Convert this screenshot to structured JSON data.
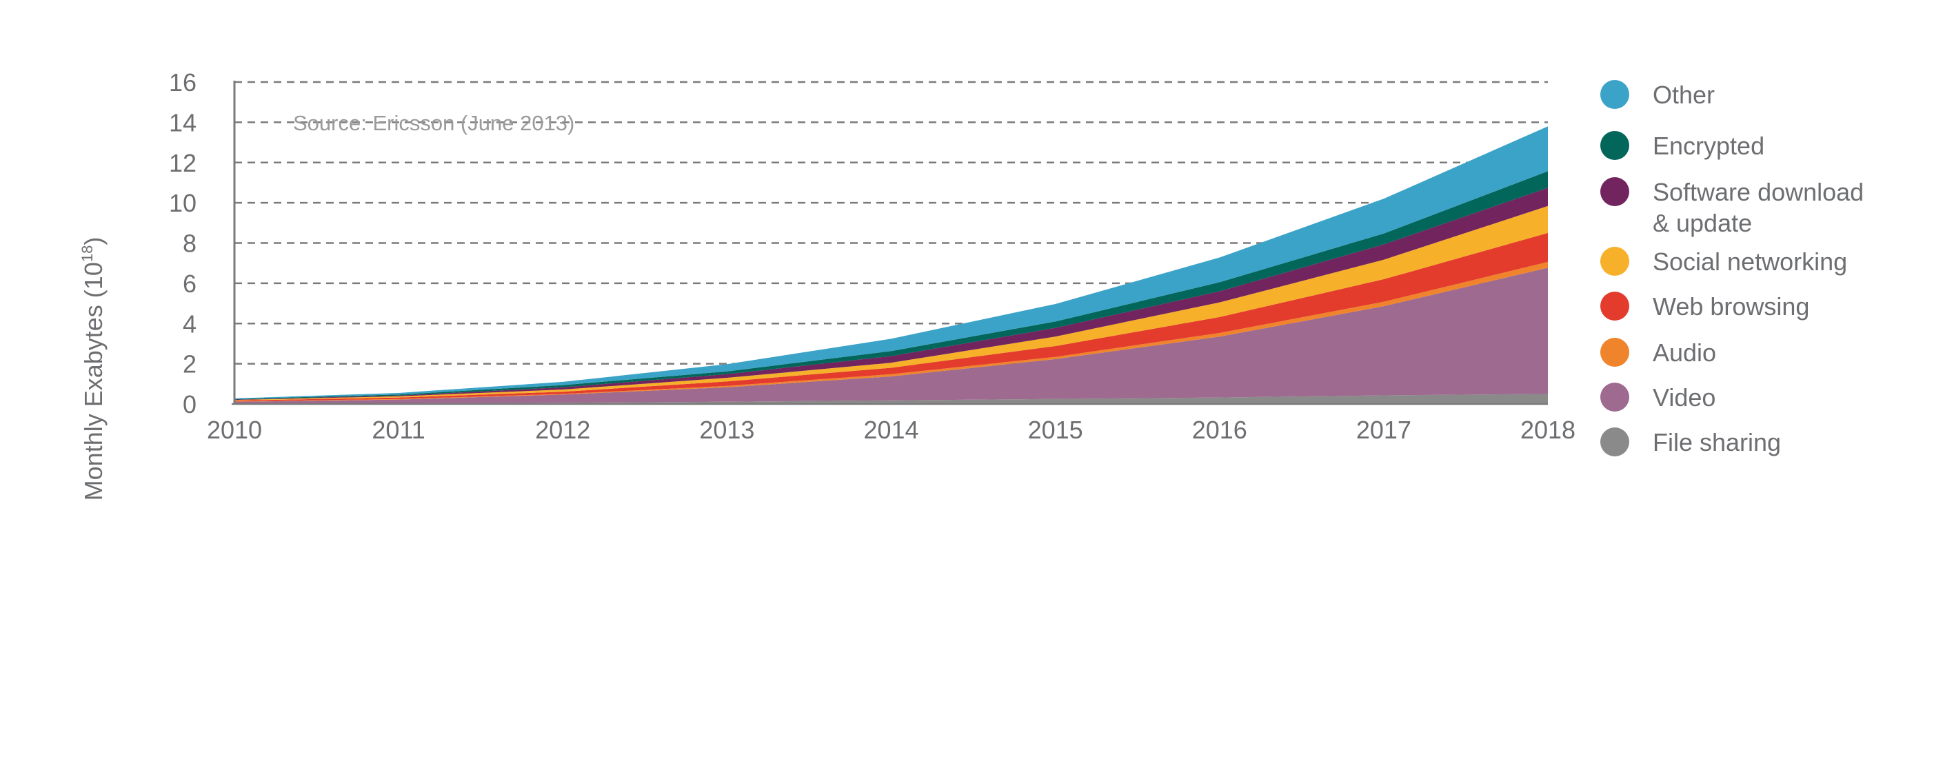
{
  "chart_data": {
    "type": "area",
    "stacked": true,
    "title": "",
    "annotation": "Source: Ericsson (June 2013)",
    "xlabel": "",
    "ylabel": "Monthly Exabytes (10",
    "ylabel_superscript": "18",
    "ylabel_close": ")",
    "x": [
      2010,
      2011,
      2012,
      2013,
      2014,
      2015,
      2016,
      2017,
      2018
    ],
    "ylim": [
      0,
      16
    ],
    "yticks": [
      0,
      2,
      4,
      6,
      8,
      10,
      12,
      14,
      16
    ],
    "grid": "horizontal dashed",
    "legend_position": "right",
    "series": [
      {
        "name": "File sharing",
        "color": "#8a8a8a",
        "values": [
          0.02,
          0.03,
          0.06,
          0.11,
          0.18,
          0.25,
          0.32,
          0.43,
          0.5
        ]
      },
      {
        "name": "Video",
        "color": "#9e6a8f",
        "values": [
          0.09,
          0.19,
          0.41,
          0.72,
          1.19,
          1.98,
          3.03,
          4.43,
          6.27
        ]
      },
      {
        "name": "Audio",
        "color": "#f0842c",
        "values": [
          0.01,
          0.03,
          0.03,
          0.07,
          0.11,
          0.11,
          0.18,
          0.22,
          0.29
        ]
      },
      {
        "name": "Web browsing",
        "color": "#e43c2c",
        "values": [
          0.05,
          0.07,
          0.11,
          0.22,
          0.32,
          0.54,
          0.79,
          1.12,
          1.44
        ]
      },
      {
        "name": "Social networking",
        "color": "#f7b02a",
        "values": [
          0.03,
          0.06,
          0.11,
          0.18,
          0.25,
          0.47,
          0.73,
          0.97,
          1.34
        ]
      },
      {
        "name": "Software download & update",
        "name_line1": "Software download",
        "name_line2": "& update",
        "color": "#72245f",
        "values": [
          0.02,
          0.04,
          0.11,
          0.18,
          0.33,
          0.43,
          0.55,
          0.76,
          0.9
        ]
      },
      {
        "name": "Encrypted",
        "color": "#02665a",
        "values": [
          0.03,
          0.05,
          0.11,
          0.14,
          0.25,
          0.32,
          0.45,
          0.54,
          0.83
        ]
      },
      {
        "name": "Other",
        "color": "#3ba3c8",
        "values": [
          0.03,
          0.08,
          0.16,
          0.36,
          0.61,
          0.87,
          1.23,
          1.73,
          2.23
        ]
      }
    ]
  }
}
